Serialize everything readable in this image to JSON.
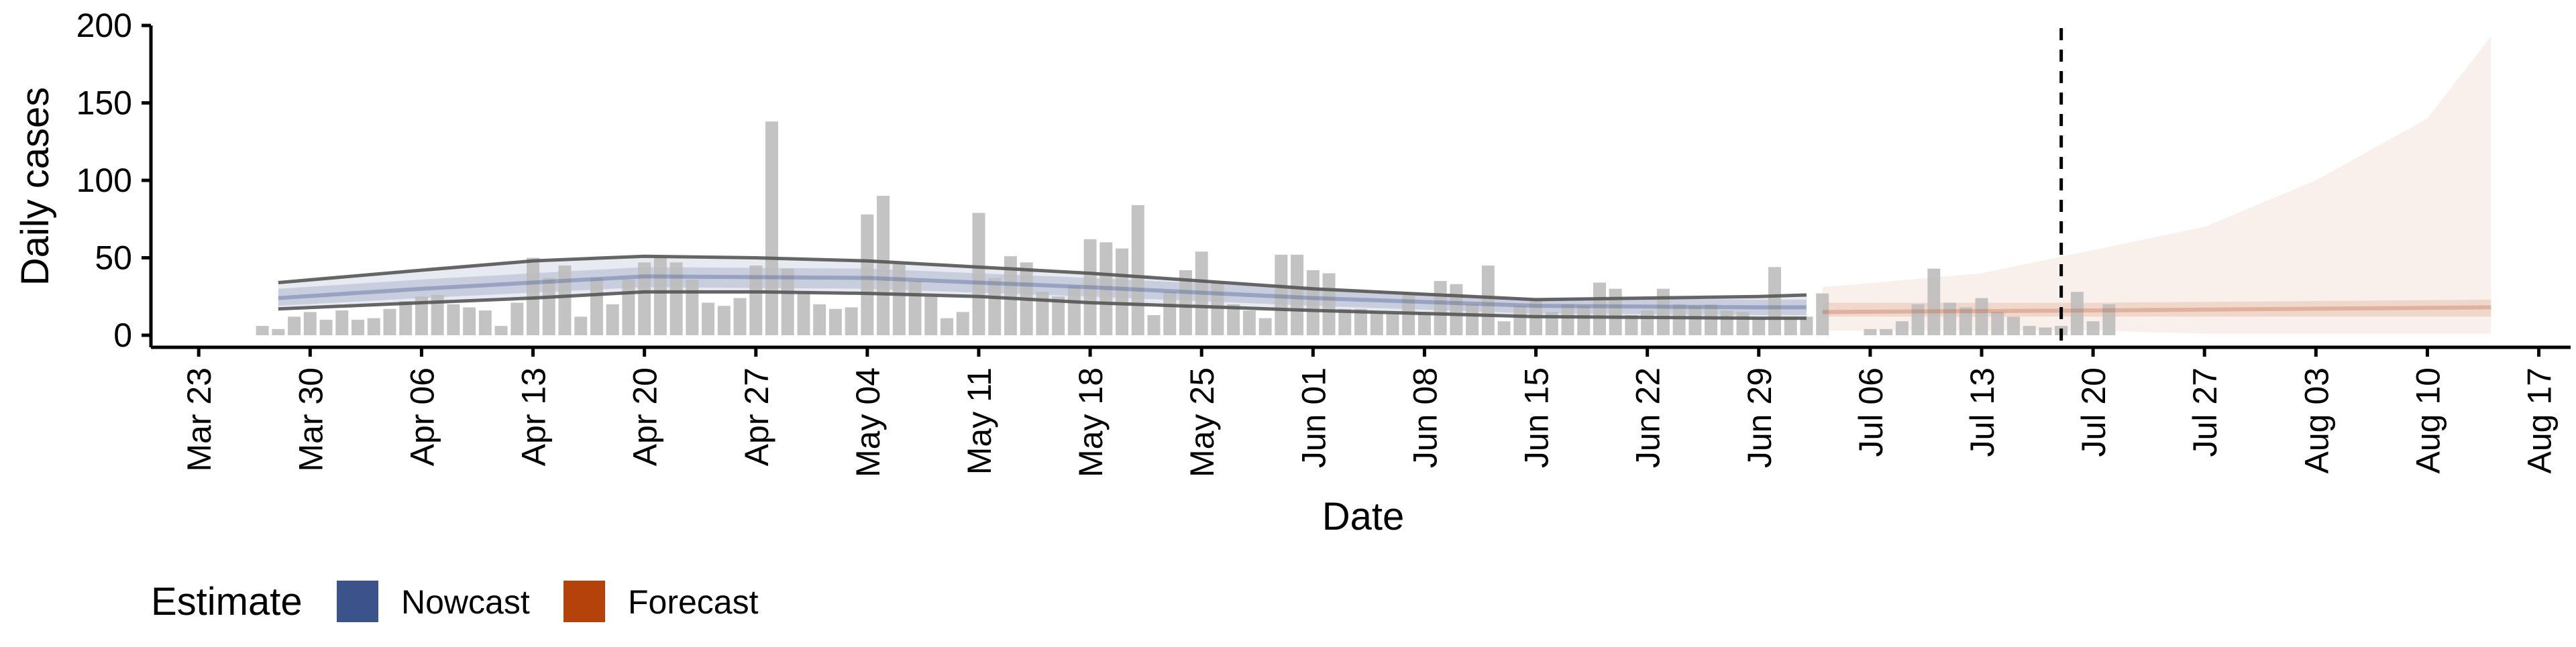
{
  "chart_data": {
    "type": "bar",
    "xlabel": "Date",
    "ylabel": "Daily cases",
    "ylim": [
      0,
      200
    ],
    "xlim": [
      "2020-03-20",
      "2020-08-19"
    ],
    "y_ticks": [
      0,
      50,
      100,
      150,
      200
    ],
    "x_ticks": [
      {
        "date": "2020-03-23",
        "label": "Mar 23"
      },
      {
        "date": "2020-03-30",
        "label": "Mar 30"
      },
      {
        "date": "2020-04-06",
        "label": "Apr 06"
      },
      {
        "date": "2020-04-13",
        "label": "Apr 13"
      },
      {
        "date": "2020-04-20",
        "label": "Apr 20"
      },
      {
        "date": "2020-04-27",
        "label": "Apr 27"
      },
      {
        "date": "2020-05-04",
        "label": "May 04"
      },
      {
        "date": "2020-05-11",
        "label": "May 11"
      },
      {
        "date": "2020-05-18",
        "label": "May 18"
      },
      {
        "date": "2020-05-25",
        "label": "May 25"
      },
      {
        "date": "2020-06-01",
        "label": "Jun 01"
      },
      {
        "date": "2020-06-08",
        "label": "Jun 08"
      },
      {
        "date": "2020-06-15",
        "label": "Jun 15"
      },
      {
        "date": "2020-06-22",
        "label": "Jun 22"
      },
      {
        "date": "2020-06-29",
        "label": "Jun 29"
      },
      {
        "date": "2020-07-06",
        "label": "Jul 06"
      },
      {
        "date": "2020-07-13",
        "label": "Jul 13"
      },
      {
        "date": "2020-07-20",
        "label": "Jul 20"
      },
      {
        "date": "2020-07-27",
        "label": "Jul 27"
      },
      {
        "date": "2020-08-03",
        "label": "Aug 03"
      },
      {
        "date": "2020-08-10",
        "label": "Aug 10"
      },
      {
        "date": "2020-08-17",
        "label": "Aug 17"
      }
    ],
    "bars_start_date": "2020-03-27",
    "bars_color": "#bdbdbd",
    "bars": [
      6,
      4,
      12,
      15,
      10,
      16,
      10,
      11,
      17,
      22,
      25,
      26,
      20,
      18,
      16,
      6,
      21,
      50,
      37,
      45,
      12,
      37,
      20,
      36,
      47,
      50,
      47,
      36,
      21,
      19,
      24,
      45,
      138,
      43,
      28,
      20,
      17,
      18,
      78,
      90,
      46,
      35,
      25,
      11,
      15,
      79,
      37,
      51,
      47,
      28,
      25,
      32,
      62,
      60,
      56,
      84,
      13,
      28,
      42,
      54,
      34,
      20,
      16,
      11,
      52,
      52,
      42,
      40,
      17,
      17,
      15,
      14,
      26,
      15,
      35,
      33,
      20,
      45,
      9,
      19,
      22,
      15,
      20,
      19,
      34,
      30,
      13,
      16,
      30,
      20,
      19,
      20,
      16,
      15,
      11,
      44,
      12,
      12,
      27,
      0,
      0,
      4,
      4,
      9,
      20,
      43,
      21,
      18,
      24,
      15,
      12,
      6,
      5,
      6,
      28,
      9,
      20
    ],
    "estimate_dates": {
      "estimate_start": "2020-03-28",
      "nowcast_end": "2020-07-02",
      "forecast_start": "2020-07-03",
      "forecast_end": "2020-08-14"
    },
    "nowcast": {
      "color": "#3b528b",
      "median": [
        {
          "date": "2020-03-28",
          "value": 24
        },
        {
          "date": "2020-04-06",
          "value": 30
        },
        {
          "date": "2020-04-20",
          "value": 38
        },
        {
          "date": "2020-05-04",
          "value": 37
        },
        {
          "date": "2020-05-18",
          "value": 31
        },
        {
          "date": "2020-06-01",
          "value": 24
        },
        {
          "date": "2020-06-15",
          "value": 19
        },
        {
          "date": "2020-06-29",
          "value": 18
        },
        {
          "date": "2020-07-02",
          "value": 18
        }
      ],
      "band_50": [
        {
          "date": "2020-03-28",
          "lower": 19,
          "upper": 30
        },
        {
          "date": "2020-04-06",
          "lower": 24,
          "upper": 36
        },
        {
          "date": "2020-04-20",
          "lower": 31,
          "upper": 44
        },
        {
          "date": "2020-05-04",
          "lower": 30,
          "upper": 43
        },
        {
          "date": "2020-05-18",
          "lower": 25,
          "upper": 37
        },
        {
          "date": "2020-06-01",
          "lower": 19,
          "upper": 30
        },
        {
          "date": "2020-06-15",
          "lower": 14,
          "upper": 24
        },
        {
          "date": "2020-06-29",
          "lower": 13,
          "upper": 23
        },
        {
          "date": "2020-07-02",
          "lower": 13,
          "upper": 23
        }
      ],
      "band_90": [
        {
          "date": "2020-03-28",
          "lower": 17,
          "upper": 34
        },
        {
          "date": "2020-04-06",
          "lower": 21,
          "upper": 42
        },
        {
          "date": "2020-04-13",
          "lower": 24,
          "upper": 48
        },
        {
          "date": "2020-04-20",
          "lower": 28,
          "upper": 51
        },
        {
          "date": "2020-04-27",
          "lower": 28,
          "upper": 50
        },
        {
          "date": "2020-05-04",
          "lower": 27,
          "upper": 48
        },
        {
          "date": "2020-05-11",
          "lower": 25,
          "upper": 44
        },
        {
          "date": "2020-05-18",
          "lower": 21,
          "upper": 40
        },
        {
          "date": "2020-06-01",
          "lower": 16,
          "upper": 30
        },
        {
          "date": "2020-06-15",
          "lower": 12,
          "upper": 23
        },
        {
          "date": "2020-06-29",
          "lower": 11,
          "upper": 25
        },
        {
          "date": "2020-07-02",
          "lower": 11,
          "upper": 26
        }
      ]
    },
    "forecast": {
      "color": "#b5410b",
      "median": [
        {
          "date": "2020-07-03",
          "value": 15
        },
        {
          "date": "2020-07-20",
          "value": 16
        },
        {
          "date": "2020-08-14",
          "value": 18
        }
      ],
      "band_50": [
        {
          "date": "2020-07-03",
          "lower": 12,
          "upper": 21
        },
        {
          "date": "2020-07-20",
          "lower": 12,
          "upper": 21
        },
        {
          "date": "2020-08-14",
          "lower": 12,
          "upper": 23
        }
      ],
      "band_90": [
        {
          "date": "2020-07-03",
          "lower": 3,
          "upper": 31
        },
        {
          "date": "2020-07-13",
          "lower": 3,
          "upper": 40
        },
        {
          "date": "2020-07-20",
          "lower": 3,
          "upper": 55
        },
        {
          "date": "2020-07-27",
          "lower": 1,
          "upper": 70
        },
        {
          "date": "2020-08-03",
          "lower": 1,
          "upper": 100
        },
        {
          "date": "2020-08-10",
          "lower": 1,
          "upper": 140
        },
        {
          "date": "2020-08-14",
          "lower": 1,
          "upper": 193
        }
      ]
    },
    "vline_date": "2020-07-18",
    "legend": {
      "title": "Estimate",
      "position": "bottom-left",
      "items": [
        {
          "label": "Nowcast",
          "color": "#3b528b"
        },
        {
          "label": "Forecast",
          "color": "#b5410b"
        }
      ]
    },
    "grid": false
  }
}
